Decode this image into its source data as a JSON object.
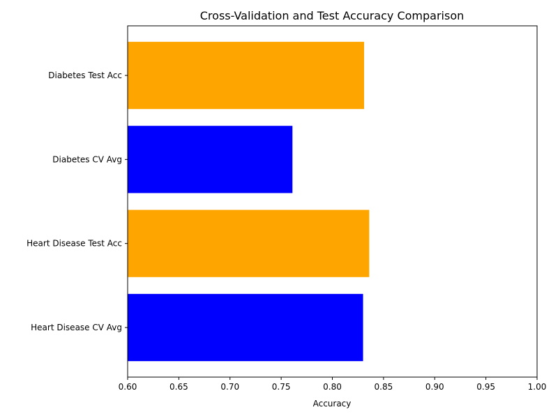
{
  "chart_data": {
    "type": "bar",
    "orientation": "horizontal",
    "title": "Cross-Validation and Test Accuracy Comparison",
    "xlabel": "Accuracy",
    "ylabel": "",
    "xlim": [
      0.6,
      1.0
    ],
    "x_ticks": [
      "0.60",
      "0.65",
      "0.70",
      "0.75",
      "0.80",
      "0.85",
      "0.90",
      "0.95",
      "1.00"
    ],
    "x_tick_values": [
      0.6,
      0.65,
      0.7,
      0.75,
      0.8,
      0.85,
      0.9,
      0.95,
      1.0
    ],
    "grid": false,
    "categories": [
      "Heart Disease CV Avg",
      "Heart Disease Test Acc",
      "Diabetes CV Avg",
      "Diabetes Test Acc"
    ],
    "values": [
      0.83,
      0.836,
      0.761,
      0.831
    ],
    "colors": [
      "#0000ff",
      "#ffa500",
      "#0000ff",
      "#ffa500"
    ],
    "frame_color": "#000000"
  }
}
